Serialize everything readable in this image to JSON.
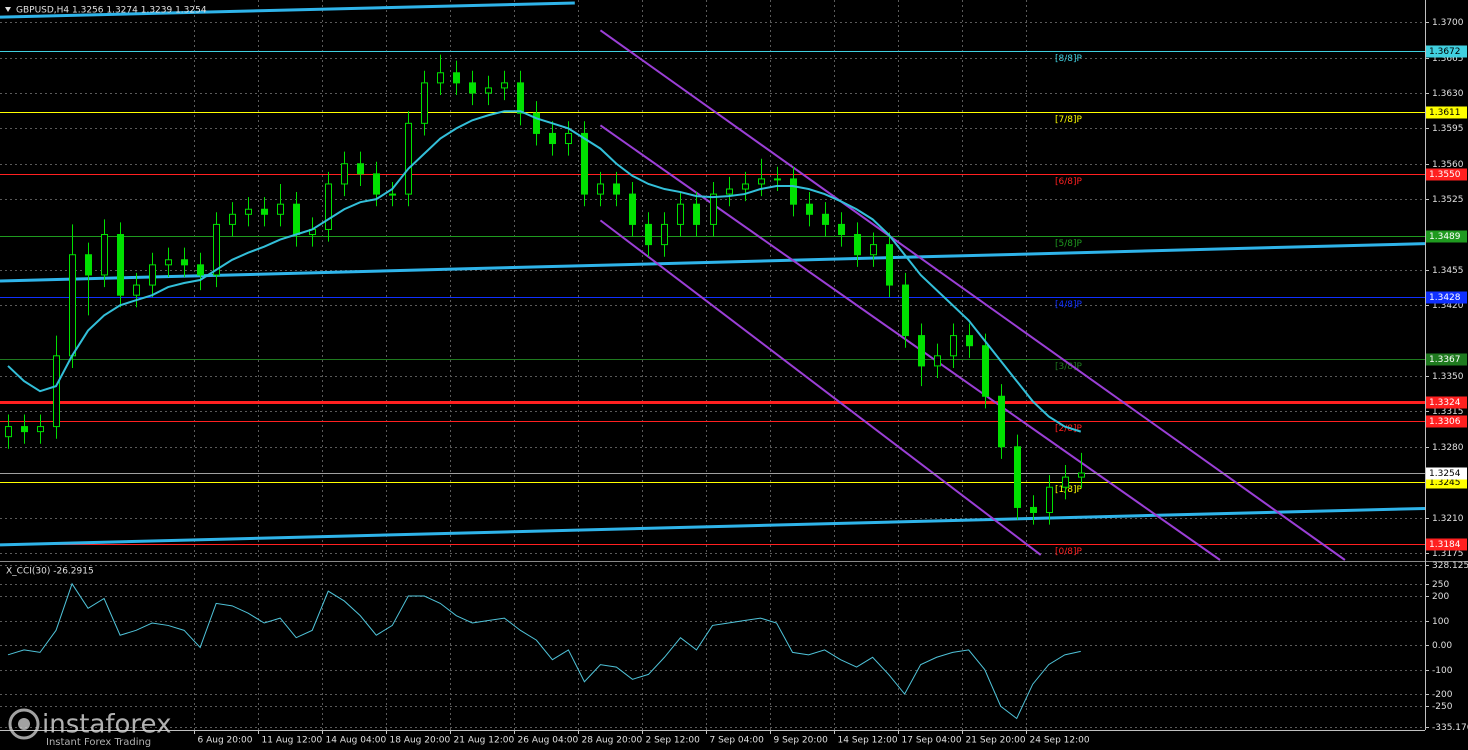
{
  "chart_data": [
    {
      "type": "candlestick",
      "title": "GBPUSD,H4  1.3256 1.3274 1.3239 1.3254",
      "color": "#00e000",
      "xlim": [
        -0.5,
        88.5
      ],
      "ylim": [
        1.3168,
        1.3722
      ],
      "grid": true,
      "yticks": [
        {
          "value": 1.37,
          "label": "1.3700"
        },
        1.3665,
        {
          "value": 1.363,
          "label": "1.3630"
        },
        1.3595,
        {
          "value": 1.356,
          "label": "1.3560"
        },
        1.3525,
        1.3455,
        {
          "value": 1.342,
          "label": "1.3420"
        },
        {
          "value": 1.335,
          "label": "1.3350"
        },
        1.3315,
        {
          "value": 1.328,
          "label": "1.3280"
        },
        {
          "value": 1.321,
          "label": "1.3210"
        },
        1.3175
      ],
      "xticks": [
        {
          "value": 11.6,
          "label": "6 Aug 20:00"
        },
        {
          "value": 15.6,
          "label": "11 Aug 12:00"
        },
        {
          "value": 19.6,
          "label": "14 Aug 04:00"
        },
        {
          "value": 23.6,
          "label": "18 Aug 20:00"
        },
        {
          "value": 27.6,
          "label": "21 Aug 12:00"
        },
        {
          "value": 31.6,
          "label": "26 Aug 04:00"
        },
        {
          "value": 35.6,
          "label": "28 Aug 20:00"
        },
        {
          "value": 39.6,
          "label": "2 Sep 12:00"
        },
        {
          "value": 43.6,
          "label": "7 Sep 04:00"
        },
        {
          "value": 47.6,
          "label": "9 Sep 20:00"
        },
        {
          "value": 51.6,
          "label": "14 Sep 12:00"
        },
        {
          "value": 55.6,
          "label": "17 Sep 04:00"
        },
        {
          "value": 59.6,
          "label": "21 Sep 20:00"
        },
        {
          "value": 63.6,
          "label": "24 Sep 12:00"
        }
      ],
      "open": [
        1.329,
        1.33,
        1.3295,
        1.33,
        1.337,
        1.347,
        1.345,
        1.349,
        1.343,
        1.344,
        1.346,
        1.3465,
        1.346,
        1.345,
        1.35,
        1.351,
        1.3515,
        1.351,
        1.352,
        1.349,
        1.3495,
        1.354,
        1.356,
        1.355,
        1.353,
        1.353,
        1.36,
        1.364,
        1.365,
        1.364,
        1.363,
        1.3635,
        1.364,
        1.361,
        1.359,
        1.358,
        1.359,
        1.353,
        1.354,
        1.353,
        1.35,
        1.348,
        1.35,
        1.352,
        1.35,
        1.353,
        1.3535,
        1.354,
        1.3545,
        1.3545,
        1.352,
        1.351,
        1.35,
        1.349,
        1.347,
        1.348,
        1.344,
        1.339,
        1.336,
        1.337,
        1.339,
        1.338,
        1.333,
        1.328,
        1.322,
        1.3215,
        1.324,
        1.325
      ],
      "high": [
        1.3312,
        1.3312,
        1.3312,
        1.339,
        1.35,
        1.3482,
        1.3505,
        1.3502,
        1.3452,
        1.3472,
        1.3477,
        1.3477,
        1.3472,
        1.3512,
        1.3522,
        1.3527,
        1.3527,
        1.354,
        1.3532,
        1.3507,
        1.3552,
        1.3572,
        1.3572,
        1.3562,
        1.3542,
        1.3612,
        1.3652,
        1.3668,
        1.3662,
        1.3652,
        1.3647,
        1.3652,
        1.3652,
        1.3622,
        1.3602,
        1.3602,
        1.3602,
        1.3552,
        1.3552,
        1.3542,
        1.3512,
        1.3512,
        1.3532,
        1.3532,
        1.3542,
        1.3547,
        1.3552,
        1.3565,
        1.3557,
        1.3557,
        1.3532,
        1.3522,
        1.3512,
        1.3502,
        1.3492,
        1.3492,
        1.3452,
        1.3402,
        1.3382,
        1.3402,
        1.3402,
        1.3392,
        1.3342,
        1.3292,
        1.3232,
        1.3252,
        1.3262,
        1.3274
      ],
      "low": [
        1.3278,
        1.3283,
        1.3283,
        1.3288,
        1.3358,
        1.341,
        1.3438,
        1.3418,
        1.3418,
        1.3428,
        1.3448,
        1.3448,
        1.3435,
        1.3438,
        1.3488,
        1.3498,
        1.3498,
        1.3498,
        1.3478,
        1.3478,
        1.3483,
        1.3528,
        1.3538,
        1.3518,
        1.3518,
        1.3518,
        1.3588,
        1.3628,
        1.3628,
        1.3618,
        1.3618,
        1.3623,
        1.3598,
        1.3578,
        1.3568,
        1.3568,
        1.3518,
        1.3518,
        1.3518,
        1.3488,
        1.3468,
        1.3468,
        1.3488,
        1.3488,
        1.3488,
        1.3518,
        1.3523,
        1.3528,
        1.3533,
        1.3508,
        1.3498,
        1.3488,
        1.3478,
        1.3458,
        1.3458,
        1.3428,
        1.3378,
        1.334,
        1.3348,
        1.3358,
        1.3368,
        1.3318,
        1.3268,
        1.3208,
        1.3203,
        1.3203,
        1.3228,
        1.3239
      ],
      "close": [
        1.33,
        1.3295,
        1.33,
        1.337,
        1.347,
        1.345,
        1.349,
        1.343,
        1.344,
        1.346,
        1.3465,
        1.346,
        1.345,
        1.35,
        1.351,
        1.3515,
        1.351,
        1.352,
        1.349,
        1.3495,
        1.354,
        1.356,
        1.355,
        1.353,
        1.353,
        1.36,
        1.364,
        1.365,
        1.364,
        1.363,
        1.3635,
        1.364,
        1.361,
        1.359,
        1.358,
        1.359,
        1.353,
        1.354,
        1.353,
        1.35,
        1.348,
        1.35,
        1.352,
        1.35,
        1.353,
        1.3535,
        1.354,
        1.3545,
        1.3545,
        1.352,
        1.351,
        1.35,
        1.349,
        1.347,
        1.348,
        1.344,
        1.339,
        1.336,
        1.337,
        1.339,
        1.338,
        1.333,
        1.328,
        1.322,
        1.3215,
        1.324,
        1.325,
        1.3254
      ],
      "ma_color": "#33bfd9",
      "ma": [
        1.336,
        1.3345,
        1.3335,
        1.334,
        1.337,
        1.3395,
        1.341,
        1.342,
        1.3425,
        1.343,
        1.3438,
        1.3442,
        1.3445,
        1.3455,
        1.3465,
        1.3472,
        1.3478,
        1.3485,
        1.349,
        1.3495,
        1.3505,
        1.3515,
        1.3522,
        1.3525,
        1.3535,
        1.3555,
        1.357,
        1.3585,
        1.3595,
        1.3603,
        1.3608,
        1.3612,
        1.3612,
        1.3605,
        1.36,
        1.3595,
        1.3585,
        1.3575,
        1.356,
        1.3548,
        1.354,
        1.3535,
        1.3532,
        1.3528,
        1.3527,
        1.3528,
        1.353,
        1.3535,
        1.3538,
        1.3538,
        1.3535,
        1.353,
        1.3523,
        1.3515,
        1.3505,
        1.349,
        1.347,
        1.345,
        1.3435,
        1.342,
        1.3405,
        1.3385,
        1.3365,
        1.3345,
        1.3325,
        1.331,
        1.33,
        1.3295
      ],
      "trendlines": [
        {
          "color": "#2fb4ea",
          "width": 3,
          "x": [
            -0.5,
            35.4
          ],
          "y": [
            1.3705,
            1.3719
          ]
        },
        {
          "color": "#2fb4ea",
          "width": 3,
          "x": [
            -0.5,
            88.5
          ],
          "y": [
            1.3444,
            1.3481
          ]
        },
        {
          "color": "#2fb4ea",
          "width": 3,
          "x": [
            -0.5,
            88.5
          ],
          "y": [
            1.3183,
            1.3219
          ]
        },
        {
          "color": "#9b3fd6",
          "width": 2,
          "x": [
            37,
            83.5
          ],
          "y": [
            1.3692,
            1.3168
          ]
        },
        {
          "color": "#9b3fd6",
          "width": 2,
          "x": [
            37,
            75.7
          ],
          "y": [
            1.3598,
            1.3168
          ]
        },
        {
          "color": "#9b3fd6",
          "width": 2,
          "x": [
            37,
            64.5
          ],
          "y": [
            1.3504,
            1.3173
          ]
        }
      ],
      "levels": [
        {
          "value": 1.3672,
          "label": "[8/8]P",
          "color": "#40d0e0"
        },
        {
          "value": 1.3611,
          "label": "[7/8]P",
          "color": "#ffff00"
        },
        {
          "value": 1.355,
          "value_label": "1.3550",
          "label": "[6/8]P",
          "color": "#ff2020"
        },
        {
          "value": 1.3489,
          "label": "[5/8]P",
          "color": "#1f9a1f"
        },
        {
          "value": 1.3428,
          "label": "[4/8]P",
          "color": "#1030ff"
        },
        {
          "value": 1.3367,
          "label": "[3/8]P",
          "color": "#1f7a1f"
        },
        {
          "value": 1.3324,
          "color": "#ff2020",
          "width": 3
        },
        {
          "value": 1.3306,
          "label": "[2/8]P",
          "color": "#ff2020"
        },
        {
          "value": 1.3245,
          "label": "[1/8]P",
          "color": "#ffff00"
        },
        {
          "value": 1.3184,
          "label": "[0/8]P",
          "color": "#ff2020"
        }
      ],
      "last_price": 1.3254,
      "watermark": "instaforex",
      "watermark_subtitle": "Instant Forex Trading"
    },
    {
      "type": "line",
      "title": "X_CCI(30) -26.2915",
      "color": "#4fc3d9",
      "ylim": [
        -347,
        335
      ],
      "grid": true,
      "yticks": [
        328.1258,
        250,
        200,
        100,
        {
          "value": 0,
          "label": "0.00"
        },
        -100,
        -200,
        -250,
        -335.176
      ],
      "values": [
        -40,
        -20,
        -30,
        60,
        250,
        150,
        190,
        40,
        60,
        90,
        80,
        60,
        -10,
        170,
        160,
        130,
        90,
        110,
        30,
        60,
        220,
        180,
        120,
        40,
        80,
        200,
        200,
        170,
        120,
        90,
        100,
        110,
        60,
        20,
        -60,
        -20,
        -150,
        -80,
        -90,
        -140,
        -120,
        -50,
        30,
        -20,
        80,
        90,
        100,
        110,
        90,
        -30,
        -40,
        -20,
        -60,
        -90,
        -50,
        -120,
        -200,
        -80,
        -50,
        -30,
        -20,
        -100,
        -250,
        -300,
        -160,
        -80,
        -40,
        -26
      ]
    }
  ]
}
